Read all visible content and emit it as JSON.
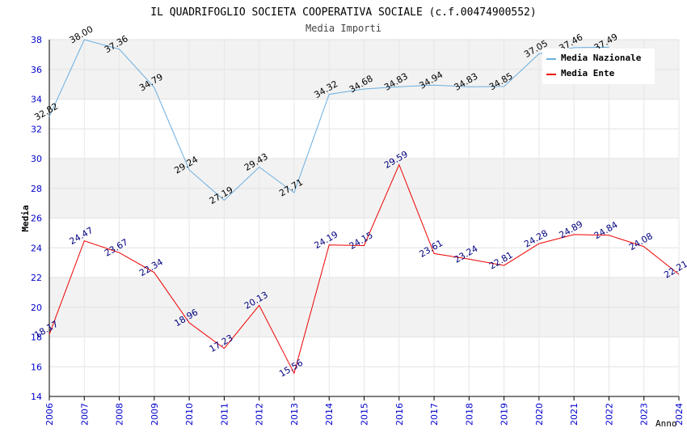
{
  "chart_data": {
    "type": "line",
    "title": "IL QUADRIFOGLIO SOCIETA COOPERATIVA SOCIALE (c.f.00474900552)",
    "subtitle": "Media Importi",
    "xlabel": "Anno",
    "ylabel": "Media",
    "ylim": [
      14,
      38
    ],
    "yticks": [
      14,
      16,
      18,
      20,
      22,
      24,
      26,
      28,
      30,
      32,
      34,
      36,
      38
    ],
    "x": [
      "2006",
      "2007",
      "2008",
      "2009",
      "2010",
      "2011",
      "2012",
      "2013",
      "2014",
      "2015",
      "2016",
      "2017",
      "2018",
      "2019",
      "2020",
      "2021",
      "2022",
      "2023",
      "2024"
    ],
    "legend_position": "top-right",
    "series": [
      {
        "name": "Media Nazionale",
        "color": "#6aaee0",
        "label_color": "#000000",
        "values": [
          32.82,
          38.0,
          37.36,
          34.79,
          29.24,
          27.19,
          29.43,
          27.71,
          34.32,
          34.68,
          34.83,
          34.94,
          34.83,
          34.85,
          37.05,
          37.46,
          37.49,
          null,
          null
        ],
        "labels": [
          "32.82",
          "38.00",
          "37.36",
          "34.79",
          "29.24",
          "27.19",
          "29.43",
          "27.71",
          "34.32",
          "34.68",
          "34.83",
          "34.94",
          "34.83",
          "34.85",
          "37.05",
          "37.46",
          "37.49",
          "",
          ""
        ]
      },
      {
        "name": "Media Ente",
        "color": "#ee0000",
        "label_color": "#000080",
        "values": [
          18.17,
          24.47,
          23.67,
          22.34,
          18.96,
          17.23,
          20.13,
          15.56,
          24.19,
          24.15,
          29.59,
          23.61,
          23.24,
          22.81,
          24.28,
          24.89,
          24.84,
          24.08,
          22.21
        ],
        "labels": [
          "18.17",
          "24.47",
          "23.67",
          "22.34",
          "18.96",
          "17.23",
          "20.13",
          "15.56",
          "24.19",
          "24.15",
          "29.59",
          "23.61",
          "23.24",
          "22.81",
          "24.28",
          "24.89",
          "24.84",
          "24.08",
          "22.21"
        ]
      }
    ]
  }
}
